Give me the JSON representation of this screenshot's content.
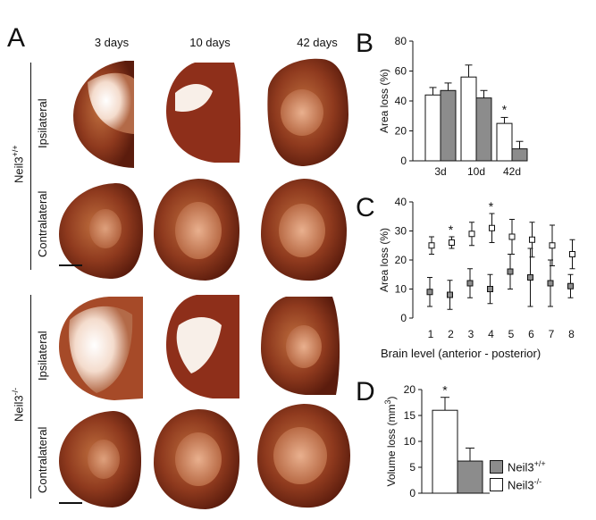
{
  "panel_a": {
    "letter": "A",
    "columns": [
      "3 days",
      "10 days",
      "42 days"
    ],
    "genotypes": [
      {
        "label": "Neil3+/+",
        "base": "Neil3",
        "sup": "+/+"
      },
      {
        "label": "Neil3-/-",
        "base": "Neil3",
        "sup": "-/-"
      }
    ],
    "rows": [
      "Ipsilateral",
      "Contralateral",
      "Ipsilateral",
      "Contralateral"
    ]
  },
  "legend": {
    "items": [
      {
        "base": "Neil3",
        "sup": "+/+",
        "color": "#8c8c8c"
      },
      {
        "base": "Neil3",
        "sup": "-/-",
        "color": "#ffffff"
      }
    ]
  },
  "chart_data": [
    {
      "panel": "B",
      "type": "bar",
      "xlabel": "",
      "ylabel": "Area loss (%)",
      "ylim": [
        0,
        80
      ],
      "yticks": [
        0,
        20,
        40,
        60,
        80
      ],
      "categories": [
        "3d",
        "10d",
        "42d"
      ],
      "series": [
        {
          "name": "Neil3-/-",
          "fill": "#ffffff",
          "values": [
            44,
            56,
            25
          ],
          "errors": [
            5,
            8,
            4
          ]
        },
        {
          "name": "Neil3+/+",
          "fill": "#8c8c8c",
          "values": [
            47,
            42,
            8
          ],
          "errors": [
            5,
            5,
            5
          ]
        }
      ],
      "annotations": [
        {
          "category": "42d",
          "text": "*"
        }
      ]
    },
    {
      "panel": "C",
      "type": "scatter",
      "xlabel": "Brain level (anterior - posterior)",
      "ylabel": "Area loss (%)",
      "ylim": [
        0,
        40
      ],
      "yticks": [
        0,
        10,
        20,
        30,
        40
      ],
      "x": [
        1,
        2,
        3,
        4,
        5,
        6,
        7,
        8
      ],
      "series": [
        {
          "name": "Neil3-/-",
          "fill": "#ffffff",
          "values": [
            25,
            26,
            29,
            31,
            28,
            27,
            25,
            22
          ],
          "errors": [
            3,
            2,
            4,
            5,
            6,
            6,
            7,
            5
          ]
        },
        {
          "name": "Neil3+/+",
          "fill": "#8c8c8c",
          "values": [
            9,
            8,
            12,
            10,
            16,
            14,
            12,
            11
          ],
          "errors": [
            5,
            5,
            5,
            5,
            6,
            10,
            8,
            4
          ]
        }
      ],
      "annotations": [
        {
          "x": 2,
          "text": "*"
        },
        {
          "x": 4,
          "text": "*"
        }
      ]
    },
    {
      "panel": "D",
      "type": "bar",
      "xlabel": "",
      "ylabel": "Volume loss (mm3)",
      "ylim": [
        0,
        20
      ],
      "yticks": [
        0,
        5,
        10,
        15,
        20
      ],
      "categories": [
        ""
      ],
      "series": [
        {
          "name": "Neil3-/-",
          "fill": "#ffffff",
          "values": [
            16
          ],
          "errors": [
            2.5
          ]
        },
        {
          "name": "Neil3+/+",
          "fill": "#8c8c8c",
          "values": [
            6.2
          ],
          "errors": [
            2.5
          ]
        }
      ],
      "annotations": [
        {
          "text": "*"
        }
      ]
    }
  ],
  "letters": {
    "b": "B",
    "c": "C",
    "d": "D"
  }
}
